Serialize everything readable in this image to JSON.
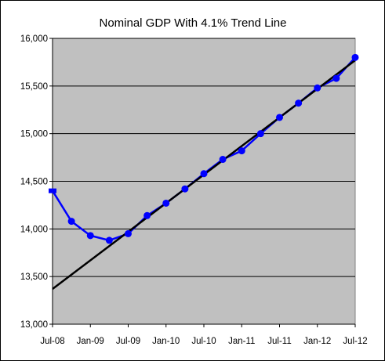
{
  "chart_data": {
    "type": "line",
    "title": "Nominal GDP With 4.1% Trend Line",
    "xlabel": "",
    "ylabel": "",
    "ylim": [
      13000,
      16000
    ],
    "y_ticks": [
      13000,
      13500,
      14000,
      14500,
      15000,
      15500,
      16000
    ],
    "y_tick_labels": [
      "13,000",
      "13,500",
      "14,000",
      "14,500",
      "15,000",
      "15,500",
      "16,000"
    ],
    "x_range": [
      "2008-07",
      "2012-07"
    ],
    "x_tick_labels": [
      "Jul-08",
      "Jan-09",
      "Jul-09",
      "Jan-10",
      "Jul-10",
      "Jan-11",
      "Jul-11",
      "Jan-12",
      "Jul-12"
    ],
    "grid": "horizontal",
    "legend": "none",
    "plot_background": "#c0c0c0",
    "series": [
      {
        "color": "#0000ff",
        "marker": "circle",
        "x": [
          "2008-07",
          "2008-10",
          "2009-01",
          "2009-04",
          "2009-07",
          "2009-10",
          "2010-01",
          "2010-04",
          "2010-07",
          "2010-10",
          "2011-01",
          "2011-04",
          "2011-07",
          "2011-10",
          "2012-01",
          "2012-04",
          "2012-07"
        ],
        "values": [
          14400,
          14080,
          13930,
          13880,
          13950,
          14140,
          14270,
          14420,
          14580,
          14730,
          14820,
          15000,
          15170,
          15320,
          15480,
          15580,
          15800
        ]
      },
      {
        "color": "#000000",
        "marker": "none",
        "x": [
          "2008-07",
          "2012-07"
        ],
        "values": [
          13370,
          15770
        ]
      }
    ]
  }
}
